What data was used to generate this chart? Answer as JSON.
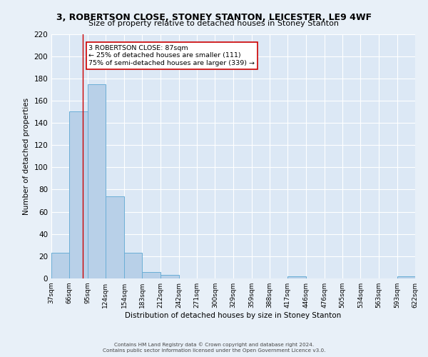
{
  "title": "3, ROBERTSON CLOSE, STONEY STANTON, LEICESTER, LE9 4WF",
  "subtitle": "Size of property relative to detached houses in Stoney Stanton",
  "xlabel": "Distribution of detached houses by size in Stoney Stanton",
  "ylabel": "Number of detached properties",
  "bin_edges": [
    37,
    66,
    95,
    124,
    154,
    183,
    212,
    242,
    271,
    300,
    329,
    359,
    388,
    417,
    446,
    476,
    505,
    534,
    563,
    593,
    622
  ],
  "bar_heights": [
    23,
    150,
    175,
    74,
    23,
    6,
    3,
    0,
    0,
    0,
    0,
    0,
    0,
    2,
    0,
    0,
    0,
    0,
    0,
    2
  ],
  "bar_color": "#b8d0e8",
  "bar_edge_color": "#6baed6",
  "fig_bg_color": "#e8f0f8",
  "ax_bg_color": "#dce8f5",
  "grid_color": "#ffffff",
  "vline_x": 87,
  "vline_color": "#cc0000",
  "ylim": [
    0,
    220
  ],
  "yticks": [
    0,
    20,
    40,
    60,
    80,
    100,
    120,
    140,
    160,
    180,
    200,
    220
  ],
  "annotation_text_line1": "3 ROBERTSON CLOSE: 87sqm",
  "annotation_text_line2": "← 25% of detached houses are smaller (111)",
  "annotation_text_line3": "75% of semi-detached houses are larger (339) →",
  "footer_line1": "Contains HM Land Registry data © Crown copyright and database right 2024.",
  "footer_line2": "Contains public sector information licensed under the Open Government Licence v3.0."
}
